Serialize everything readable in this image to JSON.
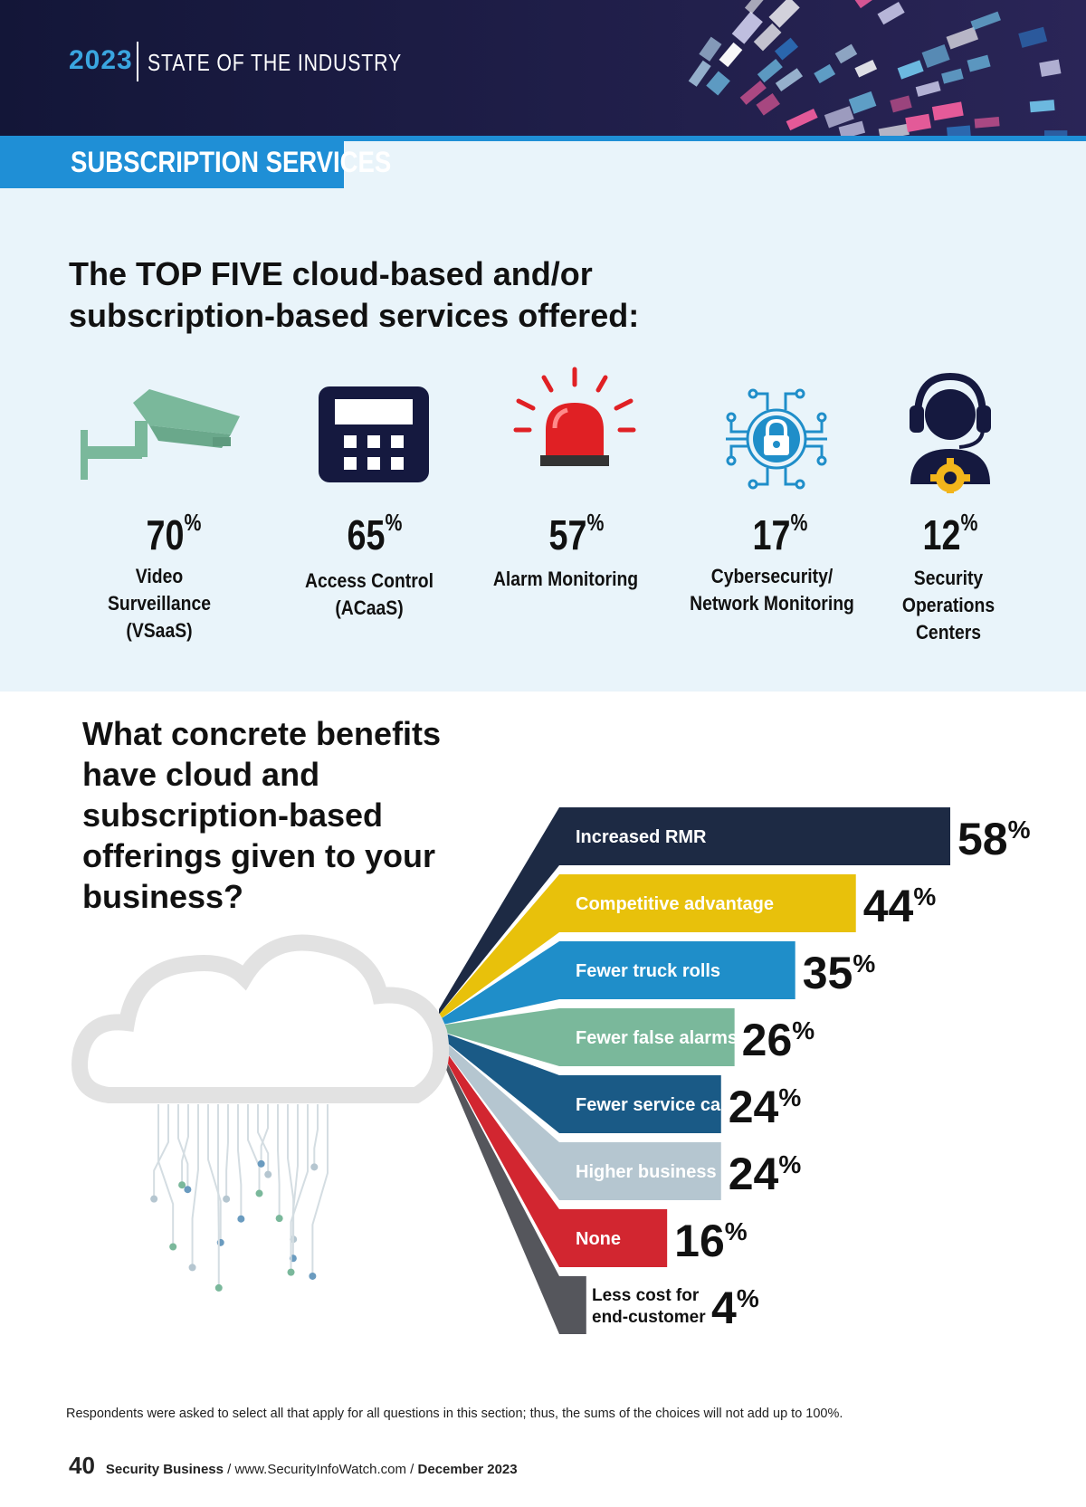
{
  "header": {
    "year": "2023",
    "title": "STATE OF THE INDUSTRY"
  },
  "section_label": "SUBSCRIPTION SERVICES",
  "question1": "The TOP FIVE cloud-based and/or subscription-based services offered:",
  "services": [
    {
      "icon": "security-camera-icon",
      "value": "70",
      "unit": "%",
      "label_lines": [
        "Video",
        "Surveillance",
        "(VSaaS)"
      ]
    },
    {
      "icon": "keypad-icon",
      "value": "65",
      "unit": "%",
      "label_lines": [
        "Access Control",
        "(ACaaS)"
      ]
    },
    {
      "icon": "alarm-light-icon",
      "value": "57",
      "unit": "%",
      "label_lines": [
        "Alarm Monitoring"
      ]
    },
    {
      "icon": "circuit-lock-icon",
      "value": "17",
      "unit": "%",
      "label_lines": [
        "Cybersecurity/",
        "Network Monitoring"
      ]
    },
    {
      "icon": "headset-operator-icon",
      "value": "12",
      "unit": "%",
      "label_lines": [
        "Security",
        "Operations",
        "Centers"
      ]
    }
  ],
  "question2": "What concrete benefits have cloud and subscription-based offerings given to your business?",
  "chart_data": {
    "type": "bar",
    "orientation": "horizontal",
    "categories": [
      "Increased RMR",
      "Competitive advantage",
      "Fewer truck rolls",
      "Fewer false alarms",
      "Fewer service calls",
      "Higher business valuation",
      "None",
      "Less cost for end-customer"
    ],
    "values": [
      58,
      44,
      35,
      26,
      24,
      24,
      16,
      4
    ],
    "value_suffix": "%",
    "colors": [
      "#1d2a44",
      "#e8c10b",
      "#1f8ec9",
      "#7ab89b",
      "#1a5a86",
      "#b5c6d0",
      "#d22630",
      "#55565c"
    ],
    "label_colors": [
      "#ffffff",
      "#ffffff",
      "#ffffff",
      "#ffffff",
      "#ffffff",
      "#ffffff",
      "#ffffff",
      "#111111"
    ],
    "xlim": [
      0,
      58
    ]
  },
  "footnote": "Respondents were asked to select all that apply for all questions in this section; thus, the sums of the choices will not add up to 100%.",
  "footer": {
    "page": "40",
    "publication": "Security Business",
    "sep1": " / ",
    "site": "www.SecurityInfoWatch.com",
    "sep2": " / ",
    "date": "December 2023"
  }
}
